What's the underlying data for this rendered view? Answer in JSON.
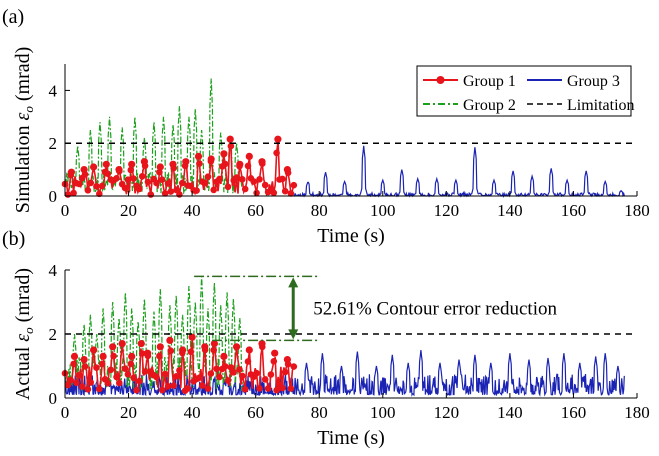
{
  "figure": {
    "panel_a_label": "(a)",
    "panel_b_label": "(b)"
  },
  "chart_data": [
    {
      "type": "line",
      "panel": "(a)",
      "ylabel_prefix": "Simulation ",
      "ylabel_symbol": "ε",
      "ylabel_sub": "o",
      "ylabel_suffix": " (mrad)",
      "xlabel": "Time (s)",
      "xlim": [
        0,
        180
      ],
      "ylim": [
        0,
        5
      ],
      "xticks": [
        0,
        20,
        40,
        60,
        80,
        100,
        120,
        140,
        160,
        180
      ],
      "yticks": [
        0,
        2,
        4
      ],
      "grid": false,
      "legend_position": "top-right",
      "legend_columns": 2,
      "limitation": 2,
      "series": [
        {
          "name": "Group 1",
          "color": "#e8141b",
          "style": "solid-marker",
          "x_range": [
            0,
            72
          ],
          "baseline": [
            0.05,
            0.75
          ],
          "peaks": [
            [
              2,
              0.9
            ],
            [
              6,
              1.0
            ],
            [
              9,
              1.1
            ],
            [
              13,
              1.2
            ],
            [
              17,
              1.0
            ],
            [
              21,
              1.2
            ],
            [
              25,
              1.3
            ],
            [
              30,
              1.1
            ],
            [
              34,
              1.2
            ],
            [
              38,
              1.3
            ],
            [
              42,
              1.5
            ],
            [
              46,
              1.4
            ],
            [
              50,
              1.6
            ],
            [
              52,
              2.15
            ],
            [
              55,
              1.2
            ],
            [
              58,
              1.5
            ],
            [
              62,
              1.3
            ],
            [
              67,
              2.15
            ],
            [
              70,
              1.0
            ]
          ]
        },
        {
          "name": "Group 2",
          "color": "#1da01d",
          "style": "dash-dot",
          "x_range": [
            0,
            56
          ],
          "baseline": [
            0.1,
            0.9
          ],
          "peaks": [
            [
              4,
              1.9
            ],
            [
              8,
              2.5
            ],
            [
              11,
              2.8
            ],
            [
              14,
              3.0
            ],
            [
              18,
              2.6
            ],
            [
              22,
              3.0
            ],
            [
              25,
              2.2
            ],
            [
              28,
              2.8
            ],
            [
              31,
              3.0
            ],
            [
              34,
              2.7
            ],
            [
              36,
              3.4
            ],
            [
              39,
              3.0
            ],
            [
              41,
              3.3
            ],
            [
              43,
              2.5
            ],
            [
              46,
              4.45
            ],
            [
              49,
              2.4
            ],
            [
              52,
              2.3
            ],
            [
              54,
              2.0
            ]
          ]
        },
        {
          "name": "Group 3",
          "color": "#1a23b3",
          "style": "solid",
          "x_range": [
            72,
            176
          ],
          "baseline": [
            0.0,
            0.12
          ],
          "peaks": [
            [
              76.5,
              0.55
            ],
            [
              82,
              0.9
            ],
            [
              88,
              0.55
            ],
            [
              94,
              1.9
            ],
            [
              100,
              0.6
            ],
            [
              106,
              1.0
            ],
            [
              111,
              0.65
            ],
            [
              117,
              0.65
            ],
            [
              123,
              0.6
            ],
            [
              129,
              1.85
            ],
            [
              135,
              0.6
            ],
            [
              141,
              0.95
            ],
            [
              147,
              0.75
            ],
            [
              153,
              1.05
            ],
            [
              158,
              0.6
            ],
            [
              164,
              0.95
            ],
            [
              170,
              0.55
            ],
            [
              175,
              0.2
            ]
          ]
        },
        {
          "name": "Limitation",
          "color": "#000000",
          "style": "dashed",
          "value": 2
        }
      ]
    },
    {
      "type": "line",
      "panel": "(b)",
      "ylabel_prefix": "Actual ",
      "ylabel_symbol": "ε",
      "ylabel_sub": "o",
      "ylabel_suffix": " (mrad)",
      "xlabel": "Time (s)",
      "xlim": [
        0,
        180
      ],
      "ylim": [
        0,
        4
      ],
      "xticks": [
        0,
        20,
        40,
        60,
        80,
        100,
        120,
        140,
        160,
        180
      ],
      "yticks": [
        0,
        2,
        4
      ],
      "grid": false,
      "limitation": 2,
      "annotation": {
        "text": "52.61% Contour error reduction",
        "top_value": 3.8,
        "bottom_value": 1.8,
        "x_from": 40,
        "x_to": 80
      },
      "series": [
        {
          "name": "Group 1",
          "color": "#e8141b",
          "style": "solid-marker",
          "x_range": [
            0,
            72
          ],
          "baseline": [
            0.2,
            1.0
          ],
          "peaks": [
            [
              3,
              1.3
            ],
            [
              6,
              1.2
            ],
            [
              9,
              1.5
            ],
            [
              12,
              1.3
            ],
            [
              15,
              1.6
            ],
            [
              18,
              1.7
            ],
            [
              21,
              1.3
            ],
            [
              24,
              1.7
            ],
            [
              26,
              1.4
            ],
            [
              30,
              1.6
            ],
            [
              33,
              1.8
            ],
            [
              37,
              1.5
            ],
            [
              40,
              1.9
            ],
            [
              44,
              1.6
            ],
            [
              47,
              1.7
            ],
            [
              50,
              1.3
            ],
            [
              54,
              1.6
            ],
            [
              58,
              1.5
            ],
            [
              62,
              1.7
            ],
            [
              66,
              1.4
            ],
            [
              70,
              1.2
            ]
          ]
        },
        {
          "name": "Group 2",
          "color": "#1da01d",
          "style": "dash-dot",
          "x_range": [
            0,
            56
          ],
          "baseline": [
            0.2,
            1.3
          ],
          "peaks": [
            [
              3,
              2.0
            ],
            [
              6,
              2.3
            ],
            [
              8,
              2.6
            ],
            [
              10,
              2.0
            ],
            [
              12,
              2.8
            ],
            [
              15,
              3.0
            ],
            [
              17,
              2.5
            ],
            [
              19,
              3.3
            ],
            [
              21,
              2.8
            ],
            [
              23,
              2.4
            ],
            [
              25,
              3.1
            ],
            [
              28,
              2.7
            ],
            [
              30,
              3.4
            ],
            [
              33,
              2.9
            ],
            [
              35,
              3.2
            ],
            [
              37,
              2.6
            ],
            [
              39,
              3.5
            ],
            [
              41,
              3.0
            ],
            [
              43,
              3.8
            ],
            [
              45,
              2.8
            ],
            [
              47,
              3.6
            ],
            [
              49,
              2.9
            ],
            [
              51,
              3.3
            ],
            [
              53,
              3.1
            ],
            [
              55,
              2.5
            ]
          ]
        },
        {
          "name": "Group 3",
          "color": "#1a23b3",
          "style": "solid",
          "x_range": [
            0,
            176
          ],
          "baseline": [
            0.1,
            0.75
          ],
          "peaks": [
            [
              76,
              1.1
            ],
            [
              81,
              1.4
            ],
            [
              87,
              1.0
            ],
            [
              92,
              1.45
            ],
            [
              98,
              1.0
            ],
            [
              103,
              1.35
            ],
            [
              108,
              1.1
            ],
            [
              112,
              1.5
            ],
            [
              118,
              1.1
            ],
            [
              124,
              1.2
            ],
            [
              129,
              1.35
            ],
            [
              134,
              1.1
            ],
            [
              140,
              1.4
            ],
            [
              146,
              1.2
            ],
            [
              152,
              1.25
            ],
            [
              157,
              1.4
            ],
            [
              162,
              1.1
            ],
            [
              167,
              1.3
            ],
            [
              170,
              1.4
            ],
            [
              174,
              1.0
            ]
          ]
        },
        {
          "name": "Limitation",
          "color": "#000000",
          "style": "dashed",
          "value": 2
        }
      ]
    }
  ]
}
